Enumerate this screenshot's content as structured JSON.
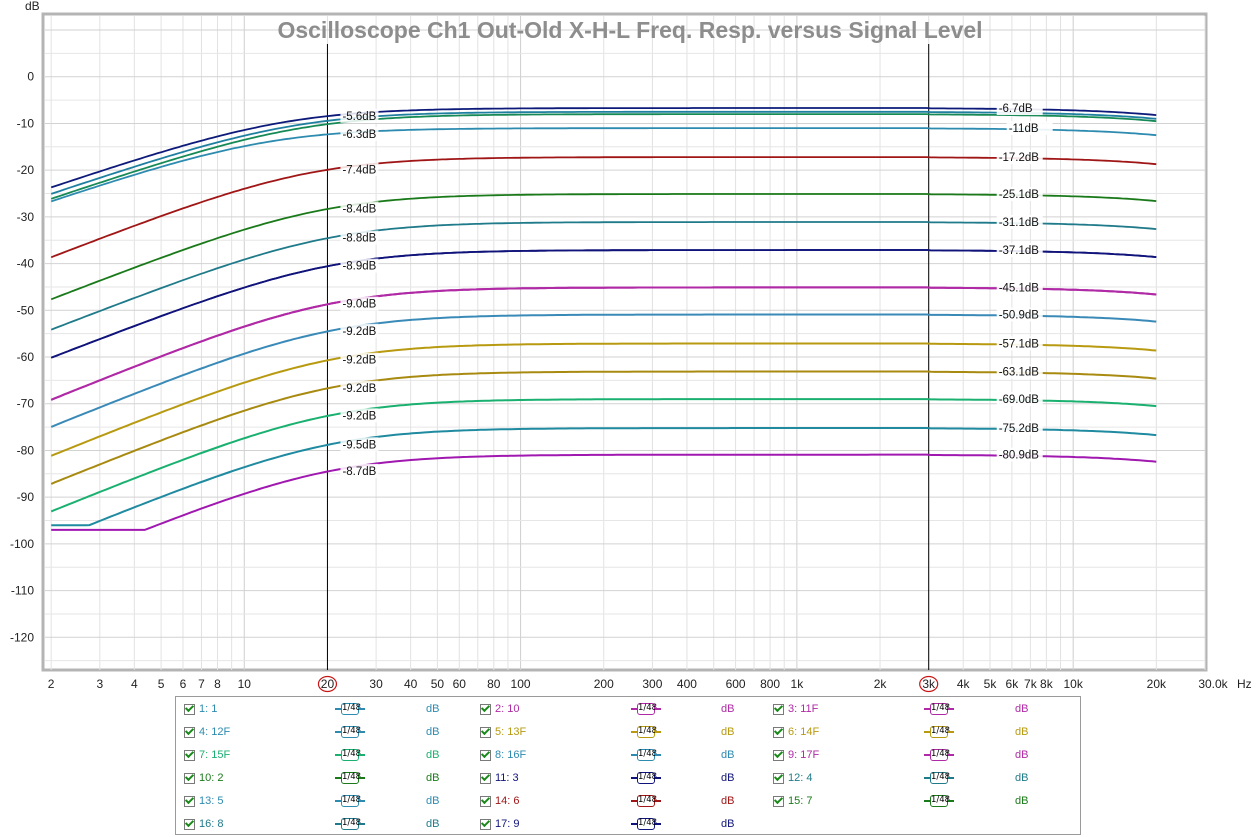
{
  "chart_data": {
    "type": "line",
    "title": "Oscilloscope Ch1 Out-Old X-H-L Freq. Resp. versus Signal Level",
    "ylabel": "dB",
    "xunit": "Hz",
    "xscale": "log",
    "xlim": [
      1.9,
      30000
    ],
    "ylim": [
      -127,
      13
    ],
    "grid": true,
    "x_tick_labels": [
      "2",
      "3",
      "4",
      "5",
      "6",
      "7",
      "8",
      "10",
      "20",
      "30",
      "40",
      "50",
      "60",
      "80",
      "100",
      "200",
      "300",
      "400",
      "600",
      "800",
      "1k",
      "2k",
      "3k",
      "4k",
      "5k",
      "6k",
      "7k",
      "8k",
      "10k",
      "20k",
      "30.0k"
    ],
    "y_tick_labels": [
      "0",
      "-10",
      "-20",
      "-30",
      "-40",
      "-50",
      "-60",
      "-70",
      "-80",
      "-90",
      "-100",
      "-110",
      "-120"
    ],
    "cursors": [
      {
        "label": "20",
        "x": 20
      },
      {
        "label": "3k",
        "x": 3000
      }
    ],
    "series": [
      {
        "name": "1: 1",
        "color": "#0d1a7a",
        "plateau": -6.7,
        "f_low": 14,
        "knee": 1.0,
        "floor": -31,
        "label_20": "-5.6dB",
        "label_3k": "-6.7dB",
        "zorder": 18
      },
      {
        "name": "4: 12F",
        "color": "#1f7fa0",
        "plateau": -7.5,
        "f_low": 15,
        "knee": 1.0,
        "floor": -31,
        "label_20": "",
        "label_3k": "",
        "zorder": 17
      },
      {
        "name": "10: 2",
        "color": "#168a56",
        "plateau": -8.0,
        "f_low": 16,
        "knee": 1.0,
        "floor": -31,
        "label_20": "",
        "label_3k": "",
        "zorder": 16
      },
      {
        "name": "13: 5",
        "color": "#2d8bb0",
        "plateau": -11.0,
        "f_low": 12,
        "knee": 1.0,
        "floor": -44,
        "label_20": "-6.3dB",
        "label_3k": "-11dB",
        "zorder": 15
      },
      {
        "name": "14: 6",
        "color": "#a01616",
        "plateau": -17.2,
        "f_low": 17,
        "knee": 1.15,
        "floor": -51,
        "label_20": "-7.4dB",
        "label_3k": "-17.2dB",
        "zorder": 14
      },
      {
        "name": "15: 7",
        "color": "#1a7a1a",
        "plateau": -25.1,
        "f_low": 19,
        "knee": 1.15,
        "floor": -60,
        "label_20": "-8.4dB",
        "label_3k": "-25.1dB",
        "zorder": 13
      },
      {
        "name": "16: 8",
        "color": "#1f7a8a",
        "plateau": -31.1,
        "f_low": 20,
        "knee": 1.15,
        "floor": -67,
        "label_20": "-8.8dB",
        "label_3k": "-31.1dB",
        "zorder": 12
      },
      {
        "name": "17: 9",
        "color": "#10137a",
        "plateau": -37.1,
        "f_low": 20,
        "knee": 1.15,
        "floor": -73,
        "label_20": "-8.9dB",
        "label_3k": "-37.1dB",
        "zorder": 11
      },
      {
        "name": "9: 17F",
        "color": "#b02aa6",
        "plateau": -45.1,
        "f_low": 20,
        "knee": 1.2,
        "floor": -80,
        "label_20": "-9.0dB",
        "label_3k": "-45.1dB",
        "zorder": 10
      },
      {
        "name": "8: 16F",
        "color": "#3a8ab8",
        "plateau": -50.9,
        "f_low": 20,
        "knee": 1.2,
        "floor": -85,
        "label_20": "-9.2dB",
        "label_3k": "-50.9dB",
        "zorder": 9
      },
      {
        "name": "5: 13F",
        "color": "#b89a10",
        "plateau": -57.1,
        "f_low": 20,
        "knee": 1.2,
        "floor": -88,
        "label_20": "-9.2dB",
        "label_3k": "-57.1dB",
        "zorder": 8
      },
      {
        "name": "6: 14F",
        "color": "#a88a10",
        "plateau": -63.1,
        "f_low": 20,
        "knee": 1.2,
        "floor": -92,
        "label_20": "-9.2dB",
        "label_3k": "-63.1dB",
        "zorder": 7
      },
      {
        "name": "7: 15F",
        "color": "#1ab070",
        "plateau": -69.0,
        "f_low": 20,
        "knee": 1.2,
        "floor": -94,
        "label_20": "-9.2dB",
        "label_3k": "-69.0dB",
        "zorder": 6
      },
      {
        "name": "12: 4",
        "color": "#1f8aa0",
        "plateau": -75.2,
        "f_low": 20,
        "knee": 1.2,
        "floor": -96,
        "label_20": "-9.5dB",
        "label_3k": "-75.2dB",
        "zorder": 5
      },
      {
        "name": "3: 11F",
        "color": "#a018b0",
        "plateau": -80.9,
        "f_low": 20,
        "knee": 1.2,
        "floor": -97,
        "label_20": "-8.7dB",
        "label_3k": "-80.9dB",
        "zorder": 4
      },
      {
        "name": "2: 10",
        "color": "#b02aa6",
        "plateau": -45.1,
        "f_low": 20,
        "knee": 1.2,
        "floor": -80,
        "label_20": "",
        "label_3k": "",
        "zorder": 3
      },
      {
        "name": "11: 3",
        "color": "#10137a",
        "plateau": -37.1,
        "f_low": 20,
        "knee": 1.15,
        "floor": -73,
        "label_20": "",
        "label_3k": "",
        "zorder": 2
      }
    ]
  },
  "legend": {
    "smoothing_label": "1/48",
    "items": [
      {
        "name": "1: 1",
        "unit": "dB",
        "color": "#2d8bb0"
      },
      {
        "name": "2: 10",
        "unit": "dB",
        "color": "#b02aa6"
      },
      {
        "name": "3: 11F",
        "unit": "dB",
        "color": "#b02aa6"
      },
      {
        "name": "4: 12F",
        "unit": "dB",
        "color": "#2d8bb0"
      },
      {
        "name": "5: 13F",
        "unit": "dB",
        "color": "#b89a10"
      },
      {
        "name": "6: 14F",
        "unit": "dB",
        "color": "#b89a10"
      },
      {
        "name": "7: 15F",
        "unit": "dB",
        "color": "#1ab070"
      },
      {
        "name": "8: 16F",
        "unit": "dB",
        "color": "#2d8bb0"
      },
      {
        "name": "9: 17F",
        "unit": "dB",
        "color": "#b02aa6"
      },
      {
        "name": "10: 2",
        "unit": "dB",
        "color": "#1a7a1a"
      },
      {
        "name": "11: 3",
        "unit": "dB",
        "color": "#10137a"
      },
      {
        "name": "12: 4",
        "unit": "dB",
        "color": "#1f7a8a"
      },
      {
        "name": "13: 5",
        "unit": "dB",
        "color": "#2d8bb0"
      },
      {
        "name": "14: 6",
        "unit": "dB",
        "color": "#a01616"
      },
      {
        "name": "15: 7",
        "unit": "dB",
        "color": "#1a7a1a"
      },
      {
        "name": "16: 8",
        "unit": "dB",
        "color": "#1f7a8a"
      },
      {
        "name": "17: 9",
        "unit": "dB",
        "color": "#10137a"
      }
    ]
  }
}
